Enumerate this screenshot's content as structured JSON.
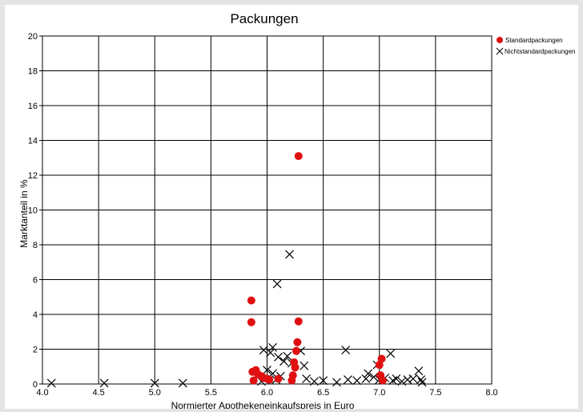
{
  "chart_data": {
    "type": "scatter",
    "title": "Packungen",
    "xlabel": "Normierter Apothekeneinkaufspreis in Euro",
    "ylabel": "Marktanteil in %",
    "xlim": [
      4.0,
      8.0
    ],
    "ylim": [
      0,
      20
    ],
    "x_ticks": [
      "4.0",
      "4.5",
      "5.0",
      "5.5",
      "6.0",
      "6.5",
      "7.0",
      "7.5",
      "8.0"
    ],
    "y_ticks": [
      "0",
      "2",
      "4",
      "6",
      "8",
      "10",
      "12",
      "14",
      "16",
      "18",
      "20"
    ],
    "grid": true,
    "legend_position": "top-right",
    "series": [
      {
        "name": "Standardpackungen",
        "marker": "circle",
        "color": "#e01010",
        "points": [
          [
            5.86,
            4.8
          ],
          [
            5.86,
            3.55
          ],
          [
            5.87,
            0.7
          ],
          [
            5.9,
            0.8
          ],
          [
            5.92,
            0.55
          ],
          [
            5.95,
            0.45
          ],
          [
            5.97,
            0.35
          ],
          [
            6.0,
            0.3
          ],
          [
            5.88,
            0.2
          ],
          [
            6.02,
            0.25
          ],
          [
            6.1,
            0.3
          ],
          [
            6.28,
            13.1
          ],
          [
            6.28,
            3.6
          ],
          [
            6.27,
            2.4
          ],
          [
            6.26,
            1.9
          ],
          [
            6.24,
            1.25
          ],
          [
            6.25,
            0.95
          ],
          [
            6.23,
            0.5
          ],
          [
            6.22,
            0.2
          ],
          [
            7.02,
            1.45
          ],
          [
            7.0,
            1.1
          ],
          [
            7.01,
            0.5
          ],
          [
            7.03,
            0.2
          ]
        ]
      },
      {
        "name": "Nichtstandardpackungen",
        "marker": "x",
        "color": "#000000",
        "points": [
          [
            4.08,
            0.05
          ],
          [
            4.55,
            0.05
          ],
          [
            5.0,
            0.05
          ],
          [
            5.25,
            0.05
          ],
          [
            6.09,
            5.75
          ],
          [
            6.2,
            7.45
          ],
          [
            6.05,
            2.1
          ],
          [
            6.03,
            1.8
          ],
          [
            5.97,
            1.95
          ],
          [
            6.1,
            1.55
          ],
          [
            6.15,
            1.3
          ],
          [
            6.18,
            1.6
          ],
          [
            6.22,
            1.2
          ],
          [
            6.3,
            1.9
          ],
          [
            6.33,
            1.05
          ],
          [
            6.0,
            0.8
          ],
          [
            6.05,
            0.6
          ],
          [
            6.12,
            0.45
          ],
          [
            5.95,
            0.15
          ],
          [
            6.08,
            0.25
          ],
          [
            6.35,
            0.3
          ],
          [
            6.42,
            0.15
          ],
          [
            6.5,
            0.2
          ],
          [
            6.62,
            0.1
          ],
          [
            6.7,
            1.95
          ],
          [
            6.72,
            0.25
          ],
          [
            6.8,
            0.2
          ],
          [
            6.88,
            0.3
          ],
          [
            6.9,
            0.6
          ],
          [
            6.95,
            0.4
          ],
          [
            6.98,
            1.1
          ],
          [
            7.0,
            0.25
          ],
          [
            7.05,
            0.35
          ],
          [
            7.1,
            1.75
          ],
          [
            7.12,
            0.2
          ],
          [
            7.15,
            0.3
          ],
          [
            7.2,
            0.15
          ],
          [
            7.25,
            0.25
          ],
          [
            7.3,
            0.3
          ],
          [
            7.35,
            0.75
          ],
          [
            7.37,
            0.25
          ],
          [
            7.38,
            0.1
          ]
        ]
      }
    ]
  }
}
